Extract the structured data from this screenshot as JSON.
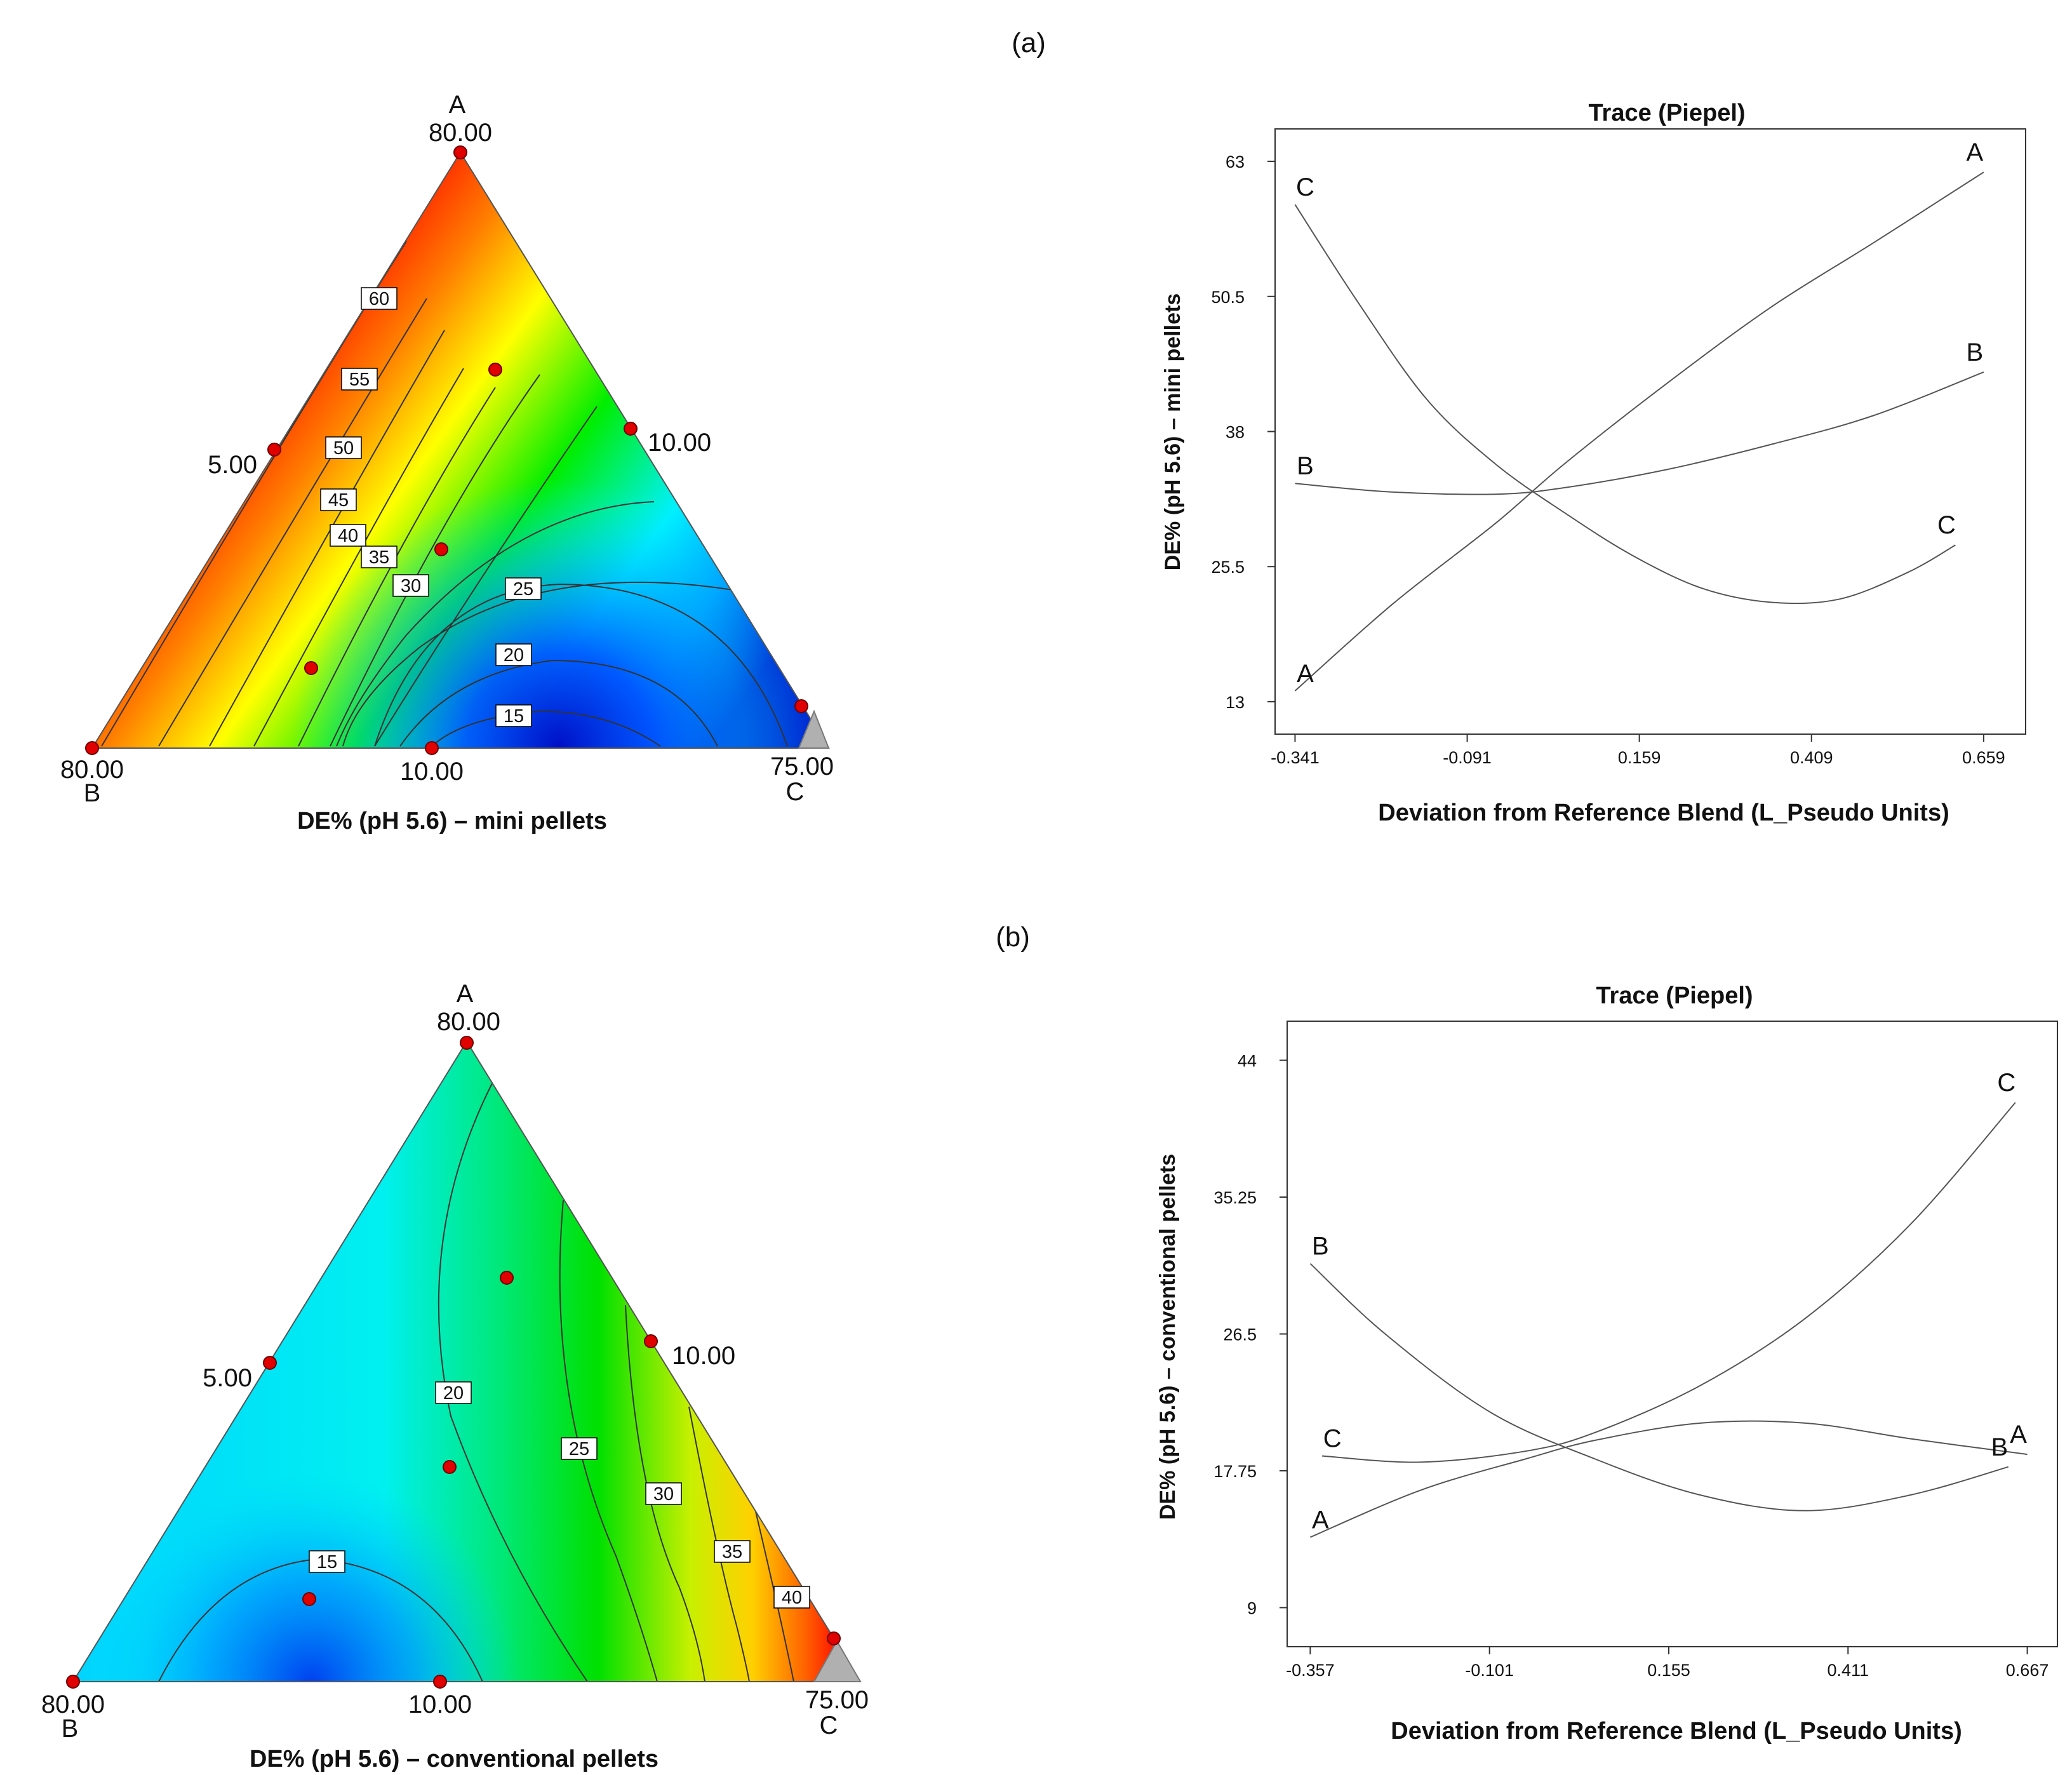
{
  "panels": [
    {
      "id": "a",
      "panel_label": "(a)",
      "ternary": {
        "vertex_A_name": "A",
        "vertex_A_value": "80.00",
        "vertex_B_name": "B",
        "vertex_B_value": "80.00",
        "vertex_C_name": "C",
        "vertex_C_value": "75.00",
        "left_edge_label": "5.00",
        "right_edge_label": "10.00",
        "bottom_edge_label": "10.00",
        "caption": "DE% (pH 5.6) – mini pellets",
        "contour_labels": [
          "60",
          "55",
          "50",
          "45",
          "40",
          "35",
          "30",
          "25",
          "20",
          "15"
        ]
      }
    },
    {
      "id": "b",
      "panel_label": "(b)",
      "ternary": {
        "vertex_A_name": "A",
        "vertex_A_value": "80.00",
        "vertex_B_name": "B",
        "vertex_B_value": "80.00",
        "vertex_C_name": "C",
        "vertex_C_value": "75.00",
        "left_edge_label": "5.00",
        "right_edge_label": "10.00",
        "bottom_edge_label": "10.00",
        "caption": "DE% (pH 5.6) – conventional pellets",
        "contour_labels": [
          "15",
          "20",
          "25",
          "30",
          "35",
          "40"
        ]
      }
    }
  ],
  "chart_data": [
    {
      "type": "line",
      "title": "Trace (Piepel)",
      "xlabel": "Deviation from Reference Blend (L_Pseudo Units)",
      "ylabel": "DE% (pH 5.6) – mini pellets",
      "xlim": [
        -0.37,
        0.72
      ],
      "ylim": [
        10,
        66
      ],
      "xticks": [
        -0.341,
        -0.091,
        0.159,
        0.409,
        0.659
      ],
      "xtick_labels": [
        "-0.341",
        "-0.091",
        "0.159",
        "0.409",
        "0.659"
      ],
      "yticks": [
        13,
        25.5,
        38,
        50.5,
        63
      ],
      "ytick_labels": [
        "13",
        "25.5",
        "38",
        "50.5",
        "63"
      ],
      "series": [
        {
          "name": "A",
          "x": [
            -0.341,
            -0.2,
            -0.05,
            0.05,
            0.2,
            0.35,
            0.5,
            0.659
          ],
          "y": [
            14,
            22,
            29.5,
            35,
            42.5,
            49.5,
            55.5,
            62
          ],
          "start_label": "A",
          "end_label": "A"
        },
        {
          "name": "B",
          "x": [
            -0.341,
            -0.2,
            -0.05,
            0.05,
            0.2,
            0.35,
            0.5,
            0.659
          ],
          "y": [
            33.2,
            32.4,
            32.2,
            32.8,
            34.5,
            36.8,
            39.5,
            43.5
          ],
          "start_label": "B",
          "end_label": "B"
        },
        {
          "name": "C",
          "x": [
            -0.341,
            -0.25,
            -0.15,
            -0.05,
            0.05,
            0.15,
            0.25,
            0.35,
            0.45,
            0.55,
            0.618
          ],
          "y": [
            59,
            50,
            41,
            35,
            30.5,
            26.5,
            23.5,
            22.2,
            22.5,
            25,
            27.5
          ],
          "start_label": "C",
          "end_label": "C"
        }
      ]
    },
    {
      "type": "line",
      "title": "Trace (Piepel)",
      "xlabel": "Deviation from Reference Blend (L_Pseudo Units)",
      "ylabel": "DE% (pH 5.6) – conventional pellets",
      "xlim": [
        -0.39,
        0.71
      ],
      "ylim": [
        6.5,
        46.5
      ],
      "xticks": [
        -0.357,
        -0.101,
        0.155,
        0.411,
        0.667
      ],
      "xtick_labels": [
        "-0.357",
        "-0.101",
        "0.155",
        "0.411",
        "0.667"
      ],
      "yticks": [
        9,
        17.75,
        26.5,
        35.25,
        44
      ],
      "ytick_labels": [
        "9",
        "17.75",
        "26.5",
        "35.25",
        "44"
      ],
      "series": [
        {
          "name": "A",
          "x": [
            -0.357,
            -0.2,
            -0.05,
            0.05,
            0.2,
            0.35,
            0.5,
            0.667
          ],
          "y": [
            13.5,
            16.5,
            18.5,
            19.7,
            20.8,
            20.8,
            19.8,
            18.8
          ],
          "start_label": "A",
          "end_label": "A"
        },
        {
          "name": "B",
          "x": [
            -0.357,
            -0.25,
            -0.1,
            0.05,
            0.2,
            0.35,
            0.5,
            0.64
          ],
          "y": [
            31,
            26.5,
            21.5,
            18.5,
            16.2,
            15.2,
            16.2,
            18
          ],
          "start_label": "B",
          "end_label": "B"
        },
        {
          "name": "C",
          "x": [
            -0.34,
            -0.2,
            -0.05,
            0.05,
            0.2,
            0.35,
            0.5,
            0.65
          ],
          "y": [
            18.7,
            18.3,
            19.0,
            20.2,
            23.2,
            27.5,
            33.5,
            41.3
          ],
          "start_label": "C",
          "end_label": "C"
        }
      ]
    }
  ]
}
